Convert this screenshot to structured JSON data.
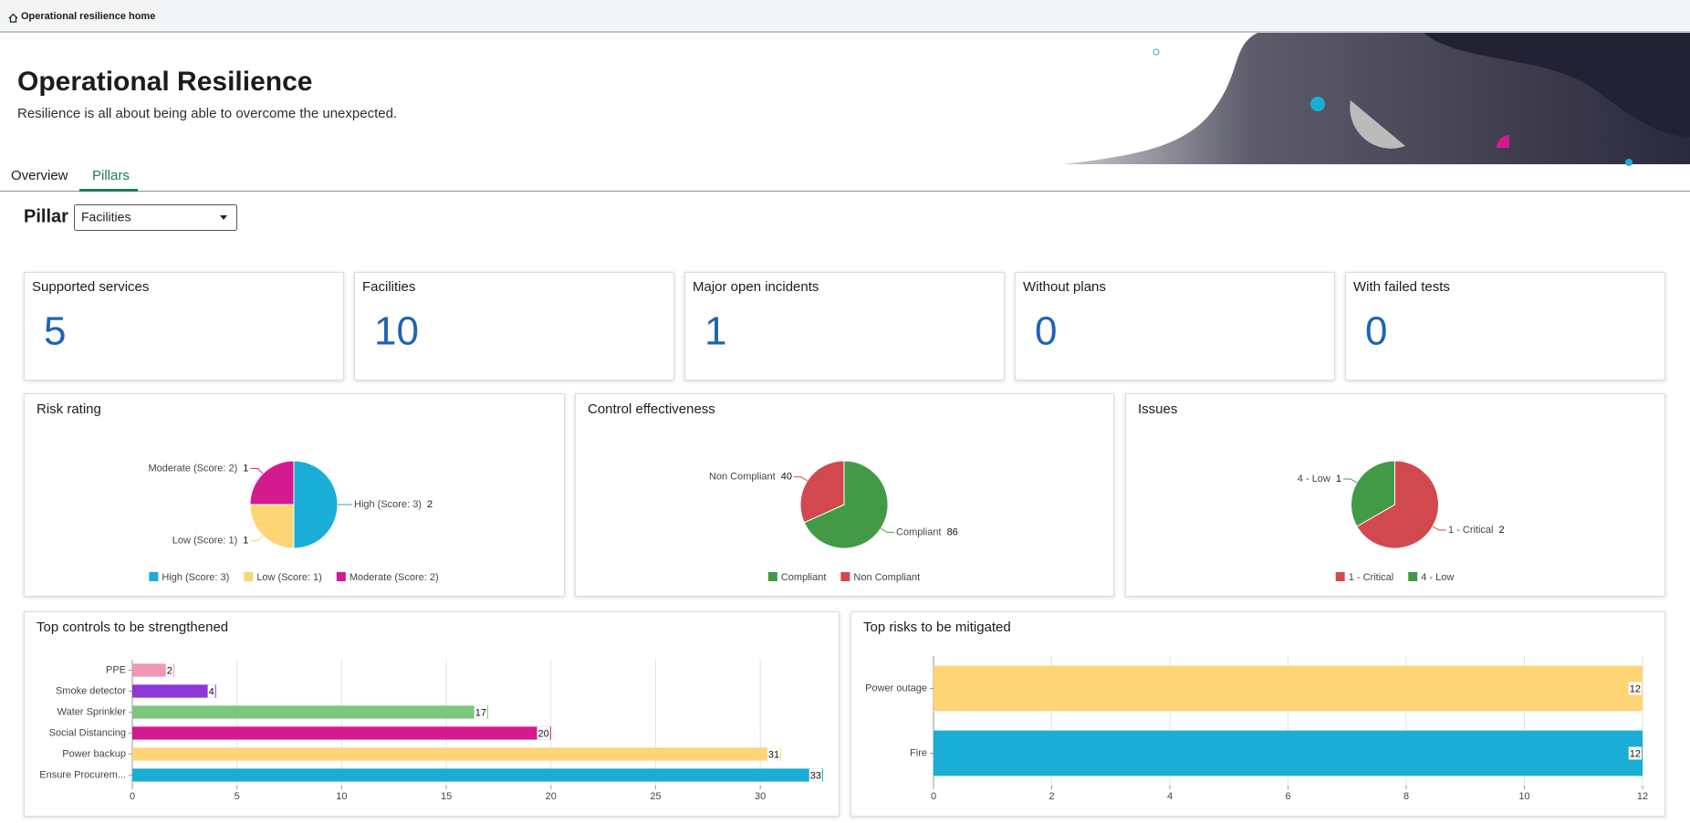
{
  "header": {
    "breadcrumb": "Operational resilience home",
    "title": "Operational Resilience",
    "subtitle": "Resilience is all about being able to overcome the unexpected."
  },
  "tabs": [
    "Overview",
    "Pillars"
  ],
  "pillar": {
    "label": "Pillar",
    "selected": "Facilities"
  },
  "kpis": [
    {
      "label": "Supported services",
      "value": 5
    },
    {
      "label": "Facilities",
      "value": 10
    },
    {
      "label": "Major open incidents",
      "value": 1
    },
    {
      "label": "Without plans",
      "value": 0
    },
    {
      "label": "With failed tests",
      "value": 0
    }
  ],
  "chart_data": [
    {
      "type": "pie",
      "title": "Risk rating",
      "categories": [
        "High (Score: 3)",
        "Low (Score: 1)",
        "Moderate (Score: 2)"
      ],
      "values": [
        2,
        1,
        1
      ],
      "colors": [
        "#1aadd6",
        "#fdd476",
        "#d41a8e"
      ]
    },
    {
      "type": "pie",
      "title": "Control effectiveness",
      "categories": [
        "Compliant",
        "Non Compliant"
      ],
      "values": [
        86,
        40
      ],
      "colors": [
        "#429a46",
        "#d1494f"
      ]
    },
    {
      "type": "pie",
      "title": "Issues",
      "categories": [
        "1 - Critical",
        "4 - Low"
      ],
      "values": [
        2,
        1
      ],
      "colors": [
        "#d1494f",
        "#429a46"
      ]
    },
    {
      "type": "bar",
      "title": "Top controls to be strengthened",
      "categories": [
        "PPE",
        "Smoke detector",
        "Water Sprinkler",
        "Social Distancing",
        "Power backup",
        "Ensure Procurem..."
      ],
      "values": [
        2,
        4,
        17,
        20,
        31,
        33
      ],
      "colors": [
        "#ee98b5",
        "#8e36d6",
        "#7dc67e",
        "#d41a8e",
        "#fdd476",
        "#1aadd6"
      ],
      "xlim": [
        0,
        33
      ],
      "xticks": [
        0,
        5,
        10,
        15,
        20,
        25,
        30
      ],
      "grid": true
    },
    {
      "type": "bar",
      "title": "Top risks to be mitigated",
      "categories": [
        "Power outage",
        "Fire"
      ],
      "values": [
        12,
        12
      ],
      "colors": [
        "#fdd476",
        "#1aadd6"
      ],
      "xlim": [
        0,
        12
      ],
      "xticks": [
        0,
        2,
        4,
        6,
        8,
        10,
        12
      ],
      "grid": true
    }
  ]
}
